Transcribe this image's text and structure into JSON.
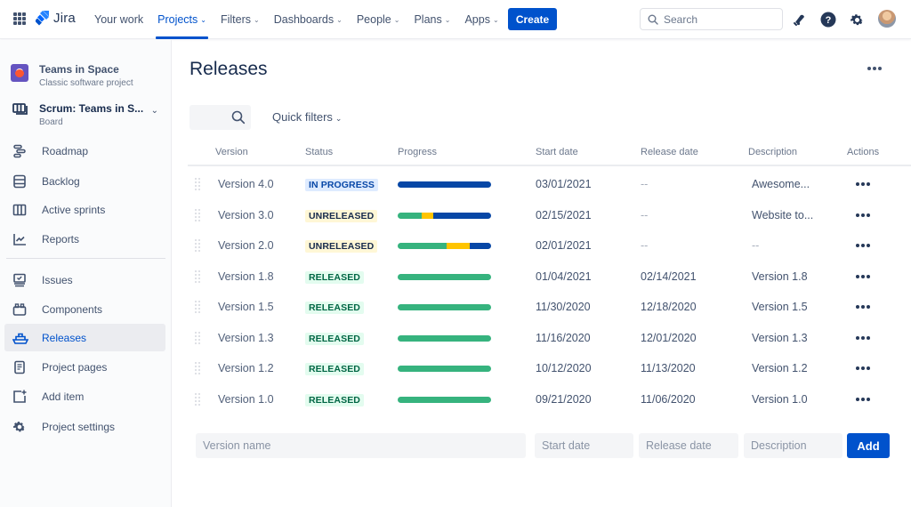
{
  "topbar": {
    "product_name": "Jira",
    "nav": [
      {
        "label": "Your work",
        "has_dropdown": false,
        "active": false
      },
      {
        "label": "Projects",
        "has_dropdown": true,
        "active": true
      },
      {
        "label": "Filters",
        "has_dropdown": true,
        "active": false
      },
      {
        "label": "Dashboards",
        "has_dropdown": true,
        "active": false
      },
      {
        "label": "People",
        "has_dropdown": true,
        "active": false
      },
      {
        "label": "Plans",
        "has_dropdown": true,
        "active": false
      },
      {
        "label": "Apps",
        "has_dropdown": true,
        "active": false
      }
    ],
    "create_label": "Create",
    "search_placeholder": "Search",
    "icons": [
      "notifications-icon",
      "help-icon",
      "settings-icon",
      "user-avatar"
    ]
  },
  "sidebar": {
    "project": {
      "name": "Teams in Space",
      "type": "Classic software project"
    },
    "board": {
      "name": "Scrum: Teams in S...",
      "sub": "Board"
    },
    "items": [
      {
        "label": "Roadmap",
        "icon": "roadmap-icon",
        "active": false
      },
      {
        "label": "Backlog",
        "icon": "backlog-icon",
        "active": false
      },
      {
        "label": "Active sprints",
        "icon": "active-sprints-icon",
        "active": false
      },
      {
        "label": "Reports",
        "icon": "reports-icon",
        "active": false
      },
      {
        "label": "Issues",
        "icon": "issues-icon",
        "active": false
      },
      {
        "label": "Components",
        "icon": "components-icon",
        "active": false
      },
      {
        "label": "Releases",
        "icon": "releases-icon",
        "active": true
      },
      {
        "label": "Project pages",
        "icon": "project-pages-icon",
        "active": false
      },
      {
        "label": "Add item",
        "icon": "add-item-icon",
        "active": false
      },
      {
        "label": "Project settings",
        "icon": "project-settings-icon",
        "active": false
      }
    ]
  },
  "main": {
    "title": "Releases",
    "quick_filters_label": "Quick filters",
    "columns": [
      "Version",
      "Status",
      "Progress",
      "Start date",
      "Release date",
      "Description",
      "Actions"
    ],
    "rows": [
      {
        "version": "Version 4.0",
        "status": "IN PROGRESS",
        "status_type": "inprogress",
        "progress": {
          "done": 0,
          "in_progress": 0,
          "todo": 100
        },
        "start_date": "03/01/2021",
        "release_date": "--",
        "description": "Awesome..."
      },
      {
        "version": "Version 3.0",
        "status": "UNRELEASED",
        "status_type": "unreleased",
        "progress": {
          "done": 26,
          "in_progress": 12,
          "todo": 62
        },
        "start_date": "02/15/2021",
        "release_date": "--",
        "description": "Website to..."
      },
      {
        "version": "Version 2.0",
        "status": "UNRELEASED",
        "status_type": "unreleased",
        "progress": {
          "done": 52,
          "in_progress": 25,
          "todo": 23
        },
        "start_date": "02/01/2021",
        "release_date": "--",
        "description": "--"
      },
      {
        "version": "Version 1.8",
        "status": "RELEASED",
        "status_type": "released",
        "progress": {
          "done": 100,
          "in_progress": 0,
          "todo": 0
        },
        "start_date": "01/04/2021",
        "release_date": "02/14/2021",
        "description": "Version 1.8"
      },
      {
        "version": "Version 1.5",
        "status": "RELEASED",
        "status_type": "released",
        "progress": {
          "done": 100,
          "in_progress": 0,
          "todo": 0
        },
        "start_date": "11/30/2020",
        "release_date": "12/18/2020",
        "description": "Version 1.5"
      },
      {
        "version": "Version 1.3",
        "status": "RELEASED",
        "status_type": "released",
        "progress": {
          "done": 100,
          "in_progress": 0,
          "todo": 0
        },
        "start_date": "11/16/2020",
        "release_date": "12/01/2020",
        "description": "Version 1.3"
      },
      {
        "version": "Version 1.2",
        "status": "RELEASED",
        "status_type": "released",
        "progress": {
          "done": 100,
          "in_progress": 0,
          "todo": 0
        },
        "start_date": "10/12/2020",
        "release_date": "11/13/2020",
        "description": "Version 1.2"
      },
      {
        "version": "Version 1.0",
        "status": "RELEASED",
        "status_type": "released",
        "progress": {
          "done": 100,
          "in_progress": 0,
          "todo": 0
        },
        "start_date": "09/21/2020",
        "release_date": "11/06/2020",
        "description": "Version 1.0"
      }
    ],
    "add_form": {
      "version_placeholder": "Version name",
      "start_placeholder": "Start date",
      "release_placeholder": "Release date",
      "description_placeholder": "Description",
      "add_label": "Add"
    }
  },
  "colors": {
    "brand": "#0052cc",
    "progress_done": "#36b37e",
    "progress_in_progress": "#ffc400",
    "progress_todo": "#0747a6",
    "lozenge_inprogress_bg": "#deebff",
    "lozenge_inprogress_fg": "#0747a6",
    "lozenge_unreleased_bg": "#fff7d6",
    "lozenge_unreleased_fg": "#172b4d",
    "lozenge_released_bg": "#e3fcef",
    "lozenge_released_fg": "#006644"
  }
}
